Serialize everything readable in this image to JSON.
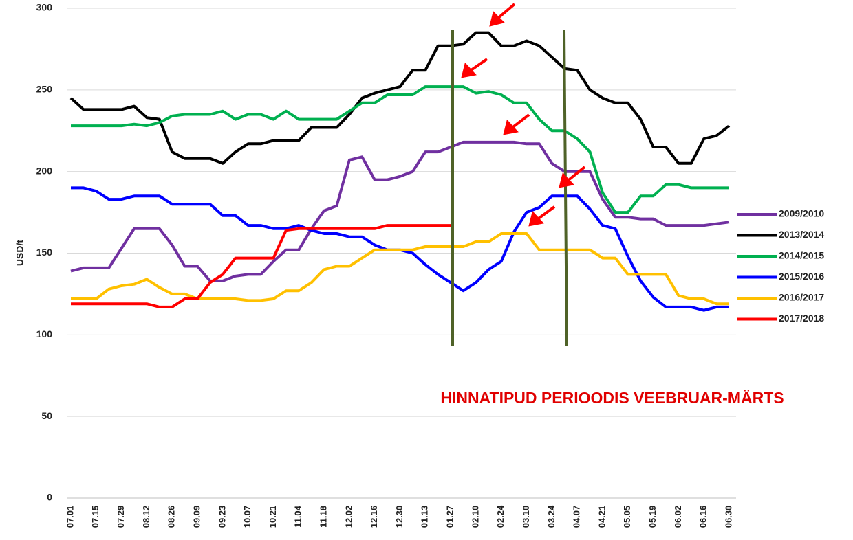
{
  "chart_data": {
    "type": "line",
    "y_label": "USD/t",
    "annotation": "HINNATIPUD PERIOODIS VEEBRUAR-MÄRTS",
    "categories": [
      "07.01",
      null,
      "07.15",
      null,
      "07.29",
      null,
      "08.12",
      null,
      "08.26",
      null,
      "09.09",
      null,
      "09.23",
      null,
      "10.07",
      null,
      "10.21",
      null,
      "11.04",
      null,
      "11.18",
      null,
      "12.02",
      null,
      "12.16",
      null,
      "12.30",
      null,
      "01.13",
      null,
      "01.27",
      null,
      "02.10",
      null,
      "02.24",
      null,
      "03.10",
      null,
      "03.24",
      null,
      "04.07",
      null,
      "04.21",
      null,
      "05.05",
      null,
      "05.19",
      null,
      "06.02",
      null,
      "06.16",
      null,
      "06.30"
    ],
    "ylim": [
      0,
      300
    ],
    "yticks": [
      0,
      50,
      100,
      150,
      200,
      250,
      300
    ],
    "grid": true,
    "series": [
      {
        "name": "2009/2010",
        "color": "#7030a0",
        "values": [
          139,
          141,
          141,
          141,
          153,
          165,
          165,
          165,
          155,
          142,
          142,
          133,
          133,
          136,
          137,
          137,
          145,
          152,
          152,
          165,
          176,
          179,
          207,
          209,
          195,
          195,
          197,
          200,
          212,
          212,
          215,
          218,
          218,
          218,
          218,
          218,
          217,
          217,
          205,
          200,
          200,
          200,
          183,
          172,
          172,
          171,
          171,
          167,
          167,
          167,
          167,
          168,
          169
        ]
      },
      {
        "name": "2013/2014",
        "color": "#000000",
        "values": [
          245,
          238,
          238,
          238,
          238,
          240,
          233,
          232,
          212,
          208,
          208,
          208,
          205,
          212,
          217,
          217,
          219,
          219,
          219,
          227,
          227,
          227,
          235,
          245,
          248,
          250,
          252,
          262,
          262,
          277,
          277,
          278,
          285,
          285,
          277,
          277,
          280,
          277,
          270,
          263,
          262,
          250,
          245,
          242,
          242,
          232,
          215,
          215,
          205,
          205,
          220,
          222,
          228
        ]
      },
      {
        "name": "2014/2015",
        "color": "#00b050",
        "values": [
          228,
          228,
          228,
          228,
          228,
          229,
          228,
          230,
          234,
          235,
          235,
          235,
          237,
          232,
          235,
          235,
          232,
          237,
          232,
          232,
          232,
          232,
          237,
          242,
          242,
          247,
          247,
          247,
          252,
          252,
          252,
          252,
          248,
          249,
          247,
          242,
          242,
          232,
          225,
          225,
          220,
          212,
          187,
          175,
          175,
          185,
          185,
          192,
          192,
          190,
          190,
          190,
          190
        ]
      },
      {
        "name": "2015/2016",
        "color": "#0000ff",
        "values": [
          190,
          190,
          188,
          183,
          183,
          185,
          185,
          185,
          180,
          180,
          180,
          180,
          173,
          173,
          167,
          167,
          165,
          165,
          167,
          164,
          162,
          162,
          160,
          160,
          155,
          152,
          152,
          150,
          143,
          137,
          132,
          127,
          132,
          140,
          145,
          163,
          175,
          178,
          185,
          185,
          185,
          177,
          167,
          165,
          148,
          133,
          123,
          117,
          117,
          117,
          115,
          117,
          117
        ]
      },
      {
        "name": "2016/2017",
        "color": "#ffc000",
        "values": [
          122,
          122,
          122,
          128,
          130,
          131,
          134,
          129,
          125,
          125,
          122,
          122,
          122,
          122,
          121,
          121,
          122,
          127,
          127,
          132,
          140,
          142,
          142,
          147,
          152,
          152,
          152,
          152,
          154,
          154,
          154,
          154,
          157,
          157,
          162,
          162,
          162,
          152,
          152,
          152,
          152,
          152,
          147,
          147,
          137,
          137,
          137,
          137,
          124,
          122,
          122,
          119,
          119
        ]
      },
      {
        "name": "2017/2018",
        "color": "#ff0000",
        "values": [
          119,
          119,
          119,
          119,
          119,
          119,
          119,
          117,
          117,
          122,
          122,
          132,
          137,
          147,
          147,
          147,
          147,
          164,
          165,
          165,
          165,
          165,
          165,
          165,
          165,
          167,
          167,
          167,
          167,
          167,
          167,
          null,
          null,
          null,
          null,
          null,
          null,
          null,
          null,
          null,
          null,
          null,
          null,
          null,
          null,
          null,
          null,
          null,
          null,
          null,
          null,
          null,
          null
        ]
      }
    ]
  }
}
